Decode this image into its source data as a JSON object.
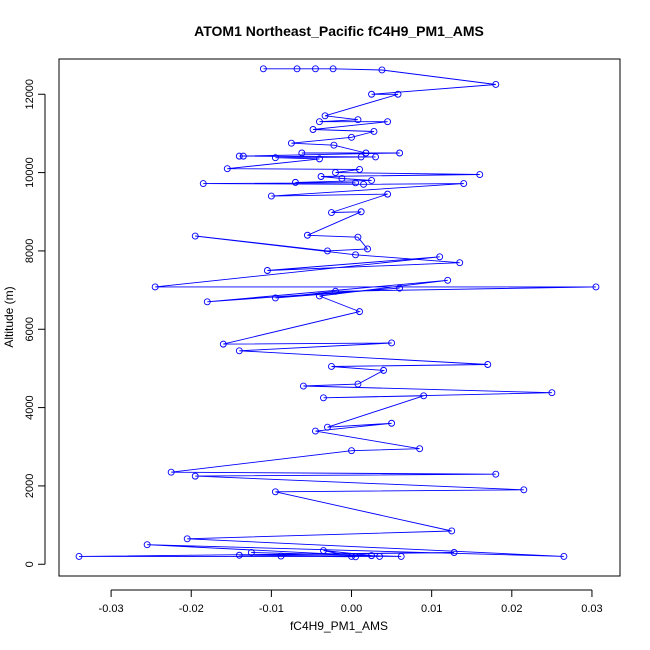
{
  "chart_data": {
    "type": "line",
    "title": "ATOM1 Northeast_Pacific fC4H9_PM1_AMS",
    "xlabel": "fC4H9_PM1_AMS",
    "ylabel": "Altitude (m)",
    "xlim": [
      -0.0365,
      0.0335
    ],
    "ylim": [
      -300,
      12900
    ],
    "xticks": [
      -0.03,
      -0.02,
      -0.01,
      0.0,
      0.01,
      0.02,
      0.03
    ],
    "xtick_labels": [
      "-0.03",
      "-0.02",
      "-0.01",
      "0.00",
      "0.01",
      "0.02",
      "0.03"
    ],
    "yticks": [
      0,
      2000,
      4000,
      6000,
      8000,
      10000,
      12000
    ],
    "ytick_labels": [
      "0",
      "2000",
      "4000",
      "6000",
      "8000",
      "10000",
      "12000"
    ],
    "grid": false,
    "legend": "none",
    "series": [
      {
        "color": "#0000ff",
        "marker": "open-circle",
        "x": [
          -0.011,
          -0.0068,
          -0.0045,
          -0.0023,
          0.0038,
          0.018,
          0.0025,
          0.0058,
          -0.0033,
          0.0008,
          -0.004,
          0.0045,
          -0.0048,
          0.0028,
          0.0,
          -0.0075,
          -0.0022,
          0.0018,
          -0.0062,
          0.006,
          -0.014,
          0.0012,
          -0.0135,
          0.003,
          -0.0095,
          -0.004,
          -0.0155,
          0.001,
          -0.002,
          0.016,
          -0.0038,
          -0.0012,
          0.0025,
          -0.007,
          0.0005,
          -0.0185,
          0.0015,
          0.014,
          -0.01,
          0.0045,
          -0.0025,
          0.0012,
          -0.0055,
          0.0008,
          0.002,
          -0.003,
          -0.0195,
          0.0005,
          0.0135,
          -0.0105,
          0.011,
          -0.0245,
          0.0305,
          -0.002,
          -0.0095,
          0.006,
          -0.018,
          0.012,
          -0.004,
          0.001,
          -0.016,
          0.005,
          -0.014,
          0.017,
          -0.0025,
          0.004,
          0.0008,
          -0.006,
          0.025,
          -0.0035,
          0.009,
          -0.003,
          0.005,
          -0.0045,
          0.0085,
          0.0,
          -0.0225,
          0.018,
          -0.0195,
          0.0215,
          -0.0095,
          0.0125,
          -0.0205,
          0.0265,
          -0.0255,
          0.0035,
          -0.034,
          0.0128,
          -0.014,
          0.0062,
          -0.0125,
          0.0025,
          -0.0035,
          0.0,
          -0.0088,
          0.0005
        ],
        "y": [
          12650,
          12650,
          12650,
          12650,
          12620,
          12250,
          12000,
          12000,
          11450,
          11350,
          11300,
          11300,
          11100,
          11050,
          10900,
          10750,
          10700,
          10500,
          10500,
          10500,
          10420,
          10400,
          10420,
          10400,
          10380,
          10350,
          10100,
          10080,
          10000,
          9950,
          9900,
          9850,
          9800,
          9750,
          9740,
          9720,
          9700,
          9720,
          9400,
          9450,
          8980,
          9000,
          8400,
          8350,
          8050,
          8000,
          8380,
          7900,
          7700,
          7500,
          7850,
          7080,
          7080,
          6970,
          6800,
          7050,
          6700,
          7250,
          6850,
          6450,
          5620,
          5650,
          5450,
          5100,
          5050,
          4950,
          4600,
          4550,
          4380,
          4250,
          4300,
          3500,
          3600,
          3400,
          2950,
          2900,
          2350,
          2300,
          2250,
          1900,
          1850,
          850,
          650,
          200,
          500,
          200,
          200,
          300,
          230,
          200,
          300,
          220,
          350,
          200,
          210,
          190
        ]
      }
    ]
  }
}
